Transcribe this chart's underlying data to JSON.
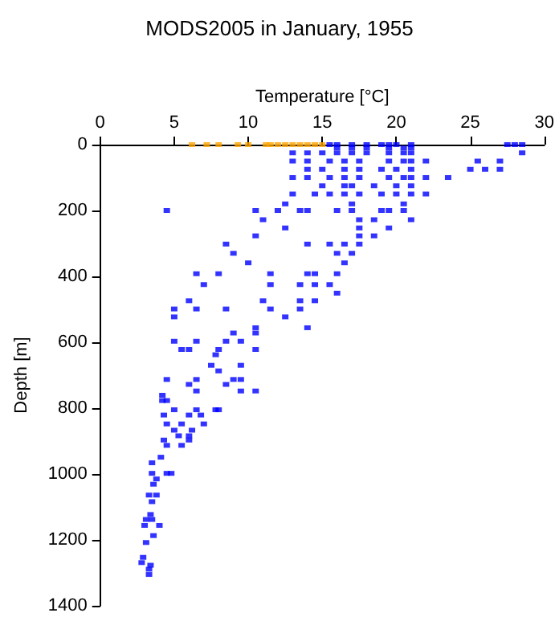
{
  "chart_data": {
    "type": "scatter",
    "title": "MODS2005 in January, 1955",
    "xlabel": "Temperature [°C]",
    "ylabel": "Depth [m]",
    "xlim": [
      0,
      30
    ],
    "xticks": [
      0,
      5,
      10,
      15,
      20,
      25,
      30
    ],
    "ylim": [
      1400,
      0
    ],
    "yticks": [
      0,
      200,
      400,
      600,
      800,
      1000,
      1200,
      1400
    ],
    "grid": false,
    "marker": "square",
    "series": [
      {
        "color": "#ffa500",
        "x": [
          6.2,
          7.2,
          8,
          9.3,
          10,
          11.2,
          11.5,
          12,
          12.5,
          13,
          13.5,
          14,
          14.5,
          15
        ],
        "values": [
          0,
          0,
          0,
          0,
          0,
          0,
          0,
          0,
          0,
          0,
          0,
          0,
          0,
          0
        ]
      },
      {
        "color": "#0000ff",
        "x": [
          15.5,
          16,
          17,
          18,
          19,
          19.5,
          20,
          21,
          27.5,
          28,
          28.5,
          16,
          17,
          18,
          19.5,
          20.5,
          21,
          13,
          14,
          15,
          16,
          17,
          18,
          19.5,
          20.5,
          21,
          28.5,
          13,
          14,
          15.5,
          16.5,
          17.5,
          19.5,
          20.5,
          21,
          22,
          25.5,
          27,
          14,
          15,
          16.5,
          17.5,
          19,
          20,
          21,
          25,
          26,
          27,
          13,
          14,
          15.5,
          16.5,
          17.5,
          19.5,
          20.5,
          21,
          22,
          23.5,
          15,
          16.5,
          17,
          18.5,
          20,
          21,
          13,
          14.5,
          15.5,
          16.5,
          17.5,
          19,
          20,
          21,
          22,
          12.5,
          17,
          20.5,
          4.5,
          10.5,
          12,
          13.5,
          14,
          16,
          17,
          19,
          19.5,
          20.5,
          11,
          17.5,
          18.5,
          21,
          12.5,
          17.5,
          19.5,
          10.5,
          17.5,
          18.5,
          8.5,
          14,
          15.5,
          16.5,
          17.5,
          9,
          16,
          17,
          10,
          16.5,
          6.5,
          8,
          11.5,
          14,
          14.5,
          16,
          7,
          11.5,
          13.5,
          14.5,
          15.5,
          16,
          6,
          11,
          13.5,
          14.5,
          5,
          6.5,
          8.5,
          11.5,
          13.5,
          5,
          12.5,
          10.5,
          14,
          9,
          10.5,
          5,
          6.5,
          8.5,
          9.5,
          5.5,
          6,
          8,
          10.5,
          7.8,
          7.5,
          9.5,
          8,
          4.5,
          6.5,
          9,
          9.5,
          6,
          8.5,
          6.5,
          9.5,
          10.5,
          4.2,
          4.2,
          4.5,
          5,
          6.5,
          7.8,
          8,
          4.3,
          6,
          6.8,
          4.5,
          5.5,
          7,
          5,
          6.2,
          5.3,
          6,
          4.3,
          6,
          4.5,
          5.5,
          4.1,
          3.5,
          3.5,
          4.5,
          4.8,
          3.8,
          3.6,
          3.3,
          3.8,
          3.5,
          3.4,
          3.1,
          3.5,
          3,
          4,
          3.6,
          3.1,
          2.9,
          2.8,
          3.4,
          3.3,
          3.3
        ],
        "values": [
          0,
          0,
          0,
          0,
          0,
          0,
          0,
          0,
          0,
          0,
          0,
          10,
          10,
          10,
          10,
          10,
          10,
          25,
          25,
          25,
          25,
          25,
          25,
          25,
          25,
          25,
          25,
          50,
          50,
          50,
          50,
          50,
          50,
          50,
          50,
          50,
          50,
          50,
          75,
          75,
          75,
          75,
          75,
          75,
          75,
          75,
          75,
          75,
          100,
          100,
          100,
          100,
          100,
          100,
          100,
          100,
          100,
          100,
          125,
          125,
          125,
          125,
          125,
          125,
          150,
          150,
          150,
          150,
          150,
          150,
          150,
          150,
          150,
          180,
          180,
          180,
          200,
          200,
          200,
          200,
          200,
          200,
          200,
          200,
          200,
          200,
          228,
          228,
          228,
          228,
          253,
          253,
          253,
          277,
          277,
          277,
          302,
          302,
          302,
          302,
          302,
          330,
          330,
          330,
          359,
          359,
          392,
          392,
          392,
          392,
          392,
          392,
          425,
          425,
          425,
          425,
          425,
          451,
          474,
          474,
          474,
          474,
          499,
          499,
          499,
          499,
          499,
          523,
          523,
          556,
          556,
          572,
          572,
          597,
          597,
          597,
          597,
          622,
          622,
          622,
          622,
          638,
          670,
          670,
          687,
          713,
          713,
          713,
          713,
          728,
          728,
          748,
          748,
          748,
          761,
          777,
          777,
          805,
          805,
          805,
          805,
          821,
          821,
          821,
          848,
          848,
          848,
          867,
          867,
          884,
          884,
          897,
          897,
          913,
          913,
          949,
          966,
          998,
          998,
          998,
          1015,
          1031,
          1064,
          1064,
          1084,
          1123,
          1138,
          1138,
          1156,
          1156,
          1187,
          1208,
          1253,
          1269,
          1277,
          1289,
          1305
        ]
      }
    ]
  }
}
